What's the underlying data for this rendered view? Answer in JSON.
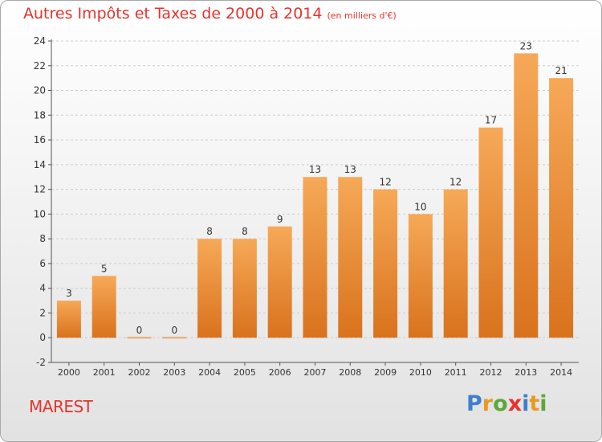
{
  "header": {
    "title": "Autres Impôts et Taxes de 2000 à 2014",
    "unit": "(en milliers d'€)"
  },
  "footer": {
    "commune": "MAREST",
    "logo_letters": [
      "P",
      "r",
      "o",
      "x",
      "i",
      "t",
      "i"
    ],
    "logo_colors": [
      "#3f7fd0",
      "#e99a1f",
      "#5ba83a",
      "#e8332c",
      "#3f7fd0",
      "#e99a1f",
      "#5ba83a"
    ]
  },
  "colors": {
    "bar_top": "#f6a957",
    "bar_bottom": "#d9721d",
    "title": "#e8332c",
    "grid": "#cccccc",
    "zero_bar": "#e8a86b"
  },
  "chart_data": {
    "type": "bar",
    "title": "Autres Impôts et Taxes de 2000 à 2014",
    "subtitle": "(en milliers d'€)",
    "categories": [
      "2000",
      "2001",
      "2002",
      "2003",
      "2004",
      "2005",
      "2006",
      "2007",
      "2008",
      "2009",
      "2010",
      "2011",
      "2012",
      "2013",
      "2014"
    ],
    "values": [
      3,
      5,
      0,
      0,
      8,
      8,
      9,
      13,
      13,
      12,
      10,
      12,
      17,
      23,
      21
    ],
    "data_labels": [
      "3",
      "5",
      "0",
      "0",
      "8",
      "8",
      "9",
      "13",
      "13",
      "12",
      "10",
      "12",
      "17",
      "23",
      "21"
    ],
    "ylim": [
      -2,
      24
    ],
    "yticks": [
      -2,
      0,
      2,
      4,
      6,
      8,
      10,
      12,
      14,
      16,
      18,
      20,
      22,
      24
    ],
    "ytick_labels": [
      "-2",
      "0",
      "2",
      "4",
      "6",
      "8",
      "10",
      "12",
      "14",
      "16",
      "18",
      "20",
      "22",
      "24"
    ],
    "grid": "horizontal dashed",
    "xlabel": "",
    "ylabel": ""
  }
}
